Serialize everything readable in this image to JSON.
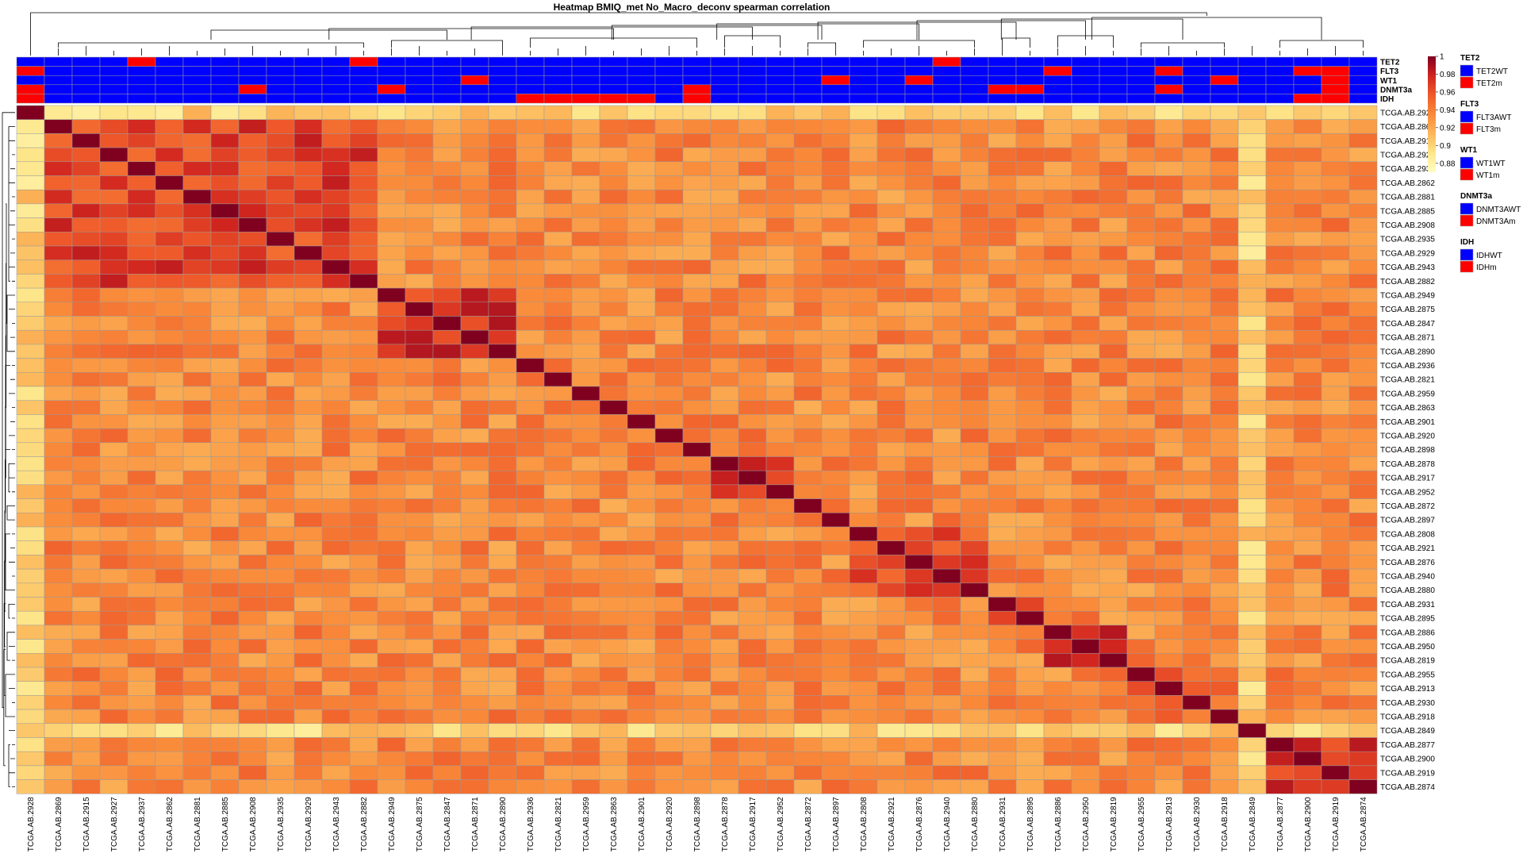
{
  "chart_data": {
    "type": "heatmap",
    "title": "Heatmap BMIQ_met No_Macro_deconv spearman correlation",
    "samples": [
      "TCGA.AB.2928",
      "TCGA.AB.2869",
      "TCGA.AB.2915",
      "TCGA.AB.2927",
      "TCGA.AB.2937",
      "TCGA.AB.2862",
      "TCGA.AB.2881",
      "TCGA.AB.2885",
      "TCGA.AB.2908",
      "TCGA.AB.2935",
      "TCGA.AB.2929",
      "TCGA.AB.2943",
      "TCGA.AB.2882",
      "TCGA.AB.2949",
      "TCGA.AB.2875",
      "TCGA.AB.2847",
      "TCGA.AB.2871",
      "TCGA.AB.2890",
      "TCGA.AB.2936",
      "TCGA.AB.2821",
      "TCGA.AB.2959",
      "TCGA.AB.2863",
      "TCGA.AB.2901",
      "TCGA.AB.2920",
      "TCGA.AB.2898",
      "TCGA.AB.2878",
      "TCGA.AB.2917",
      "TCGA.AB.2952",
      "TCGA.AB.2872",
      "TCGA.AB.2897",
      "TCGA.AB.2808",
      "TCGA.AB.2921",
      "TCGA.AB.2876",
      "TCGA.AB.2940",
      "TCGA.AB.2880",
      "TCGA.AB.2931",
      "TCGA.AB.2895",
      "TCGA.AB.2886",
      "TCGA.AB.2950",
      "TCGA.AB.2819",
      "TCGA.AB.2955",
      "TCGA.AB.2913",
      "TCGA.AB.2930",
      "TCGA.AB.2918",
      "TCGA.AB.2849",
      "TCGA.AB.2877",
      "TCGA.AB.2900",
      "TCGA.AB.2919",
      "TCGA.AB.2874"
    ],
    "value_range": [
      0.87,
      1.0
    ],
    "colorbar": {
      "ticks": [
        1,
        0.98,
        0.96,
        0.94,
        0.92,
        0.9,
        0.88
      ],
      "tick_labels": [
        "1",
        "0.98",
        "0.96",
        "0.94",
        "0.92",
        "0.9",
        "0.88"
      ],
      "colors": [
        "#fffdc4",
        "#fde68a",
        "#fcb75a",
        "#f98a3a",
        "#ef5a2a",
        "#d0241f",
        "#800020"
      ]
    },
    "diagonal_value": 1.0,
    "clusters": [
      {
        "samples": [
          1,
          12
        ],
        "within": 0.965
      },
      {
        "samples": [
          13,
          17
        ],
        "within": 0.97
      },
      {
        "samples": [
          18,
          24
        ],
        "within": 0.94
      },
      {
        "samples": [
          25,
          27
        ],
        "within": 0.975
      },
      {
        "samples": [
          28,
          29
        ],
        "within": 0.955
      },
      {
        "samples": [
          30,
          34
        ],
        "within": 0.96
      },
      {
        "samples": [
          35,
          36
        ],
        "within": 0.975
      },
      {
        "samples": [
          37,
          39
        ],
        "within": 0.975
      },
      {
        "samples": [
          40,
          43
        ],
        "within": 0.95
      },
      {
        "samples": [
          45,
          48
        ],
        "within": 0.975
      }
    ],
    "cross_cluster_value": 0.935,
    "outlier_samples": [
      0,
      44
    ],
    "outlier_value": 0.9,
    "annotations": [
      {
        "name": "TET2",
        "mutant_indices": [
          4,
          12,
          33
        ],
        "legend": [
          {
            "label": "TET2WT",
            "color": "#0000ff"
          },
          {
            "label": "TET2m",
            "color": "#ff0000"
          }
        ]
      },
      {
        "name": "FLT3",
        "mutant_indices": [
          0,
          37,
          41,
          46,
          47
        ],
        "legend": [
          {
            "label": "FLT3AWT",
            "color": "#0000ff"
          },
          {
            "label": "FLT3m",
            "color": "#ff0000"
          }
        ]
      },
      {
        "name": "WT1",
        "mutant_indices": [
          16,
          29,
          32,
          43,
          47
        ],
        "legend": [
          {
            "label": "WT1WT",
            "color": "#0000ff"
          },
          {
            "label": "WT1m",
            "color": "#ff0000"
          }
        ]
      },
      {
        "name": "DNMT3a",
        "mutant_indices": [
          0,
          8,
          13,
          24,
          35,
          36,
          41,
          47
        ],
        "legend": [
          {
            "label": "DNMT3AWT",
            "color": "#0000ff"
          },
          {
            "label": "DNMT3Am",
            "color": "#ff0000"
          }
        ]
      },
      {
        "name": "IDH",
        "mutant_indices": [
          0,
          18,
          19,
          20,
          21,
          22,
          24,
          46,
          47
        ],
        "legend": [
          {
            "label": "IDHWT",
            "color": "#0000ff"
          },
          {
            "label": "IDHm",
            "color": "#ff0000"
          }
        ]
      }
    ],
    "grid": true,
    "legend_position": "right",
    "dendrograms": [
      "top",
      "left"
    ]
  }
}
